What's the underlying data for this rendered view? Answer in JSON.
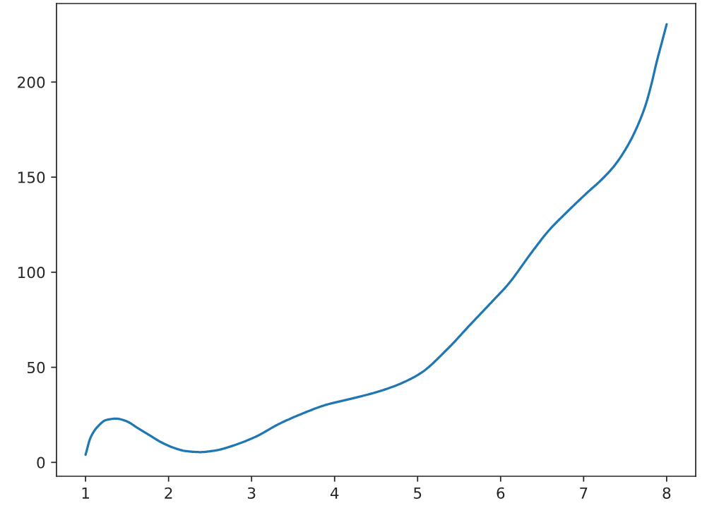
{
  "chart_data": {
    "type": "line",
    "x": [
      1.0,
      1.06,
      1.15,
      1.25,
      1.37,
      1.49,
      1.63,
      1.77,
      1.91,
      2.06,
      2.2,
      2.38,
      2.57,
      2.77,
      3.05,
      3.33,
      3.62,
      3.9,
      4.19,
      4.47,
      4.75,
      5.04,
      5.35,
      5.64,
      5.92,
      6.09,
      6.38,
      6.58,
      6.8,
      7.06,
      7.2,
      7.37,
      7.53,
      7.65,
      7.75,
      7.82,
      7.88,
      7.94,
      8.0
    ],
    "series": [
      {
        "color": "#1f77b4",
        "values": [
          4,
          13,
          19,
          22.3,
          23,
          21.7,
          18,
          14.3,
          10.6,
          7.7,
          6,
          5.4,
          6.3,
          8.7,
          13.5,
          20.2,
          25.8,
          30.3,
          33.4,
          36.5,
          40.6,
          47,
          59.2,
          72.7,
          85.6,
          93.6,
          110.8,
          121.9,
          131.7,
          142.5,
          148,
          156,
          166.5,
          177,
          188.4,
          199.5,
          210.6,
          220.5,
          230.4
        ]
      }
    ],
    "xlim": [
      0.65,
      8.35
    ],
    "ylim": [
      -7.3,
      241.3
    ],
    "xticks": [
      1,
      2,
      3,
      4,
      5,
      6,
      7,
      8
    ],
    "yticks": [
      0,
      50,
      100,
      150,
      200
    ],
    "grid": false
  }
}
